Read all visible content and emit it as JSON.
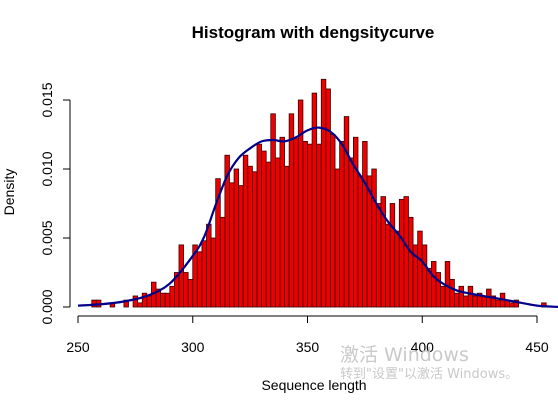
{
  "chart_data": {
    "type": "bar",
    "title": "Histogram with dengsitycurve",
    "xlabel": "Sequence length",
    "ylabel": "Density",
    "xlim": [
      250,
      460
    ],
    "ylim": [
      0,
      0.0165
    ],
    "x_ticks": [
      "250",
      "300",
      "350",
      "400",
      "450"
    ],
    "y_ticks": [
      "0.000",
      "0.005",
      "0.010",
      "0.015"
    ],
    "bin_width": 2,
    "bins": [
      {
        "x": 256,
        "y": 0.0005
      },
      {
        "x": 258,
        "y": 0.0005
      },
      {
        "x": 264,
        "y": 0.0003
      },
      {
        "x": 270,
        "y": 0.0005
      },
      {
        "x": 274,
        "y": 0.0008
      },
      {
        "x": 276,
        "y": 0.0003
      },
      {
        "x": 278,
        "y": 0.001
      },
      {
        "x": 280,
        "y": 0.0008
      },
      {
        "x": 282,
        "y": 0.0018
      },
      {
        "x": 284,
        "y": 0.0013
      },
      {
        "x": 286,
        "y": 0.001
      },
      {
        "x": 288,
        "y": 0.001
      },
      {
        "x": 290,
        "y": 0.0015
      },
      {
        "x": 292,
        "y": 0.0025
      },
      {
        "x": 294,
        "y": 0.0045
      },
      {
        "x": 296,
        "y": 0.0025
      },
      {
        "x": 298,
        "y": 0.002
      },
      {
        "x": 300,
        "y": 0.0045
      },
      {
        "x": 302,
        "y": 0.004
      },
      {
        "x": 304,
        "y": 0.0048
      },
      {
        "x": 306,
        "y": 0.006
      },
      {
        "x": 308,
        "y": 0.005
      },
      {
        "x": 310,
        "y": 0.0093
      },
      {
        "x": 312,
        "y": 0.0065
      },
      {
        "x": 314,
        "y": 0.011
      },
      {
        "x": 316,
        "y": 0.009
      },
      {
        "x": 318,
        "y": 0.01
      },
      {
        "x": 320,
        "y": 0.0088
      },
      {
        "x": 322,
        "y": 0.011
      },
      {
        "x": 324,
        "y": 0.0102
      },
      {
        "x": 326,
        "y": 0.0098
      },
      {
        "x": 328,
        "y": 0.0118
      },
      {
        "x": 330,
        "y": 0.0113
      },
      {
        "x": 332,
        "y": 0.0105
      },
      {
        "x": 334,
        "y": 0.014
      },
      {
        "x": 336,
        "y": 0.0108
      },
      {
        "x": 338,
        "y": 0.0123
      },
      {
        "x": 340,
        "y": 0.0102
      },
      {
        "x": 342,
        "y": 0.014
      },
      {
        "x": 344,
        "y": 0.0122
      },
      {
        "x": 346,
        "y": 0.015
      },
      {
        "x": 348,
        "y": 0.012
      },
      {
        "x": 350,
        "y": 0.0118
      },
      {
        "x": 352,
        "y": 0.0155
      },
      {
        "x": 354,
        "y": 0.0118
      },
      {
        "x": 356,
        "y": 0.0165
      },
      {
        "x": 358,
        "y": 0.0158
      },
      {
        "x": 360,
        "y": 0.0125
      },
      {
        "x": 362,
        "y": 0.01
      },
      {
        "x": 364,
        "y": 0.012
      },
      {
        "x": 366,
        "y": 0.0138
      },
      {
        "x": 368,
        "y": 0.0108
      },
      {
        "x": 370,
        "y": 0.0123
      },
      {
        "x": 372,
        "y": 0.0095
      },
      {
        "x": 374,
        "y": 0.012
      },
      {
        "x": 376,
        "y": 0.0095
      },
      {
        "x": 378,
        "y": 0.01
      },
      {
        "x": 380,
        "y": 0.0075
      },
      {
        "x": 382,
        "y": 0.008
      },
      {
        "x": 384,
        "y": 0.006
      },
      {
        "x": 386,
        "y": 0.0075
      },
      {
        "x": 388,
        "y": 0.0055
      },
      {
        "x": 390,
        "y": 0.0078
      },
      {
        "x": 392,
        "y": 0.008
      },
      {
        "x": 394,
        "y": 0.0065
      },
      {
        "x": 396,
        "y": 0.0045
      },
      {
        "x": 398,
        "y": 0.0055
      },
      {
        "x": 400,
        "y": 0.0045
      },
      {
        "x": 402,
        "y": 0.0028
      },
      {
        "x": 404,
        "y": 0.0033
      },
      {
        "x": 406,
        "y": 0.0025
      },
      {
        "x": 408,
        "y": 0.0015
      },
      {
        "x": 410,
        "y": 0.0033
      },
      {
        "x": 412,
        "y": 0.002
      },
      {
        "x": 414,
        "y": 0.001
      },
      {
        "x": 416,
        "y": 0.0015
      },
      {
        "x": 418,
        "y": 0.0008
      },
      {
        "x": 420,
        "y": 0.0015
      },
      {
        "x": 422,
        "y": 0.0008
      },
      {
        "x": 424,
        "y": 0.001
      },
      {
        "x": 426,
        "y": 0.0008
      },
      {
        "x": 428,
        "y": 0.0013
      },
      {
        "x": 430,
        "y": 0.0008
      },
      {
        "x": 432,
        "y": 0.0005
      },
      {
        "x": 434,
        "y": 0.001
      },
      {
        "x": 436,
        "y": 0.0005
      },
      {
        "x": 438,
        "y": 0.0003
      },
      {
        "x": 440,
        "y": 0.0005
      },
      {
        "x": 452,
        "y": 0.0003
      }
    ],
    "density_curve": {
      "x": [
        250,
        260,
        270,
        280,
        290,
        300,
        305,
        310,
        315,
        320,
        325,
        330,
        335,
        340,
        345,
        350,
        355,
        360,
        365,
        370,
        375,
        380,
        385,
        390,
        395,
        400,
        405,
        410,
        415,
        420,
        430,
        440,
        450,
        460
      ],
      "y": [
        0.0001,
        0.0002,
        0.0004,
        0.0008,
        0.0017,
        0.0037,
        0.0051,
        0.0074,
        0.0095,
        0.0108,
        0.0115,
        0.012,
        0.0121,
        0.012,
        0.0123,
        0.0128,
        0.013,
        0.0127,
        0.0118,
        0.0103,
        0.009,
        0.0075,
        0.0062,
        0.0052,
        0.004,
        0.0033,
        0.0022,
        0.0016,
        0.0012,
        0.001,
        0.0007,
        0.0004,
        0.0001,
        0.0
      ]
    },
    "colors": {
      "bar_fill": "#ee0000",
      "bar_edge": "#3a0000",
      "curve": "#00008b"
    },
    "grid": false,
    "legend": "none"
  },
  "watermark": {
    "line1": "激活 Windows",
    "line2": "转到\"设置\"以激活 Windows。"
  }
}
